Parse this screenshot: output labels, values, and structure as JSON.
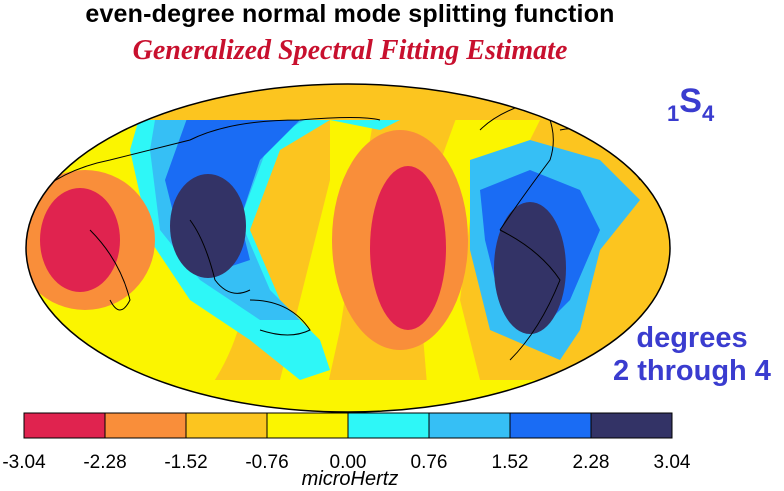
{
  "title": "even-degree normal mode splitting function",
  "subtitle": "Generalized Spectral Fitting Estimate",
  "mode_label": {
    "subscript": "1",
    "main": "S",
    "main_subscript": "4"
  },
  "degree_label": [
    "degrees",
    "2 through 4"
  ],
  "colorbar": {
    "ticks": [
      "-3.04",
      "-2.28",
      "-1.52",
      "-0.76",
      "0.00",
      "0.76",
      "1.52",
      "2.28",
      "3.04"
    ],
    "unit": "microHertz",
    "colors": [
      "#e0234f",
      "#f98e3a",
      "#fcc51f",
      "#fbf500",
      "#2ef7f7",
      "#36bff5",
      "#1a6cf4",
      "#333366"
    ]
  }
}
